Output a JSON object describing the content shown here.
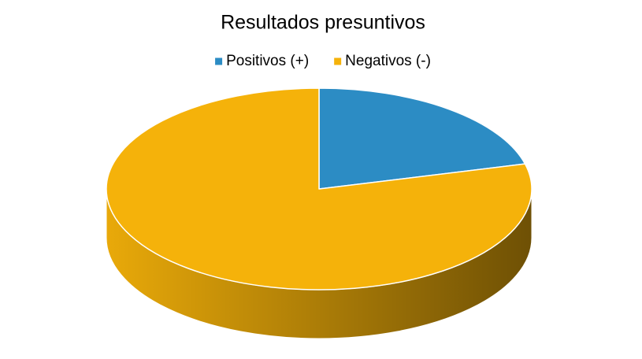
{
  "chart_data": {
    "type": "pie",
    "title": "Resultados presuntivos",
    "categories": [
      "Positivos (+)",
      "Negativos (-)"
    ],
    "values": [
      21,
      79
    ],
    "colors": [
      "#2c8cc4",
      "#f5b20a"
    ],
    "legend": "top"
  }
}
